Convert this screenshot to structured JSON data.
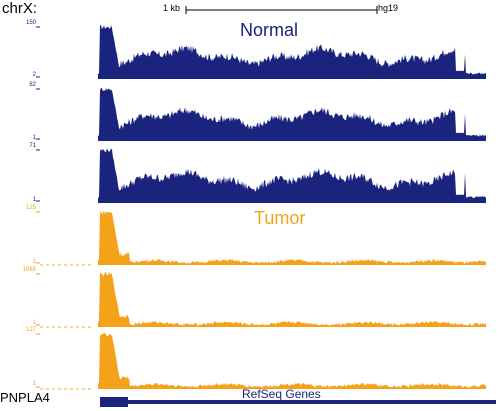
{
  "header": {
    "chrom_label": "chrX:",
    "scale_label": "1 kb",
    "assembly_label": "hg19"
  },
  "groups": {
    "normal": {
      "label": "Normal",
      "color": "#1a237e"
    },
    "tumor": {
      "label": "Tumor",
      "color": "#f5a21b"
    }
  },
  "tracks": [
    {
      "group": "normal",
      "ymax": "150",
      "ymin": "2"
    },
    {
      "group": "normal",
      "ymax": "82",
      "ymin": "1"
    },
    {
      "group": "normal",
      "ymax": "71",
      "ymin": "1"
    },
    {
      "group": "tumor",
      "ymax": "125",
      "ymin": "1"
    },
    {
      "group": "tumor",
      "ymax": "1065",
      "ymin": "1"
    },
    {
      "group": "tumor",
      "ymax": "127",
      "ymin": "1"
    }
  ],
  "refseq": {
    "track_label": "RefSeq Genes",
    "gene_name": "PNPLA4",
    "color": "#1a237e"
  }
}
